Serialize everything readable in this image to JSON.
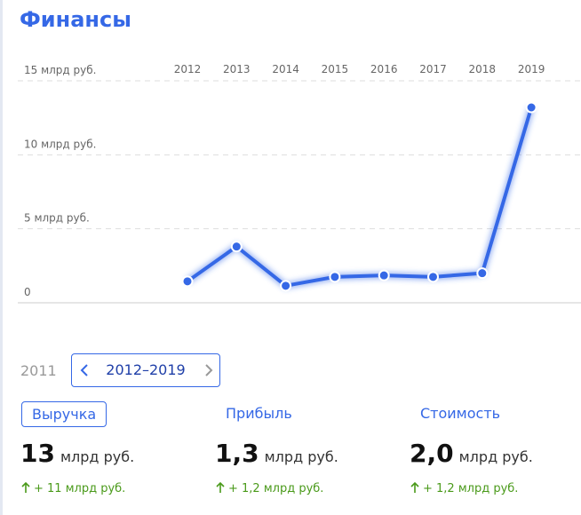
{
  "title": "Финансы",
  "chart_data": {
    "type": "line",
    "categories": [
      "2012",
      "2013",
      "2014",
      "2015",
      "2016",
      "2017",
      "2018",
      "2019"
    ],
    "values": [
      1.45,
      3.8,
      1.15,
      1.75,
      1.85,
      1.75,
      2.0,
      13.2
    ],
    "color": "#3568e6",
    "ylim": [
      0,
      15
    ],
    "yticks": [
      0,
      {
        "value": 5,
        "label": "5 млрд руб."
      },
      {
        "value": 10,
        "label": "10 млрд руб."
      },
      {
        "value": 15,
        "label": "15 млрд руб."
      }
    ],
    "grid": true
  },
  "period": {
    "previous": "2011",
    "range": "2012–2019"
  },
  "metrics": [
    {
      "label": "Выручка",
      "value": "13",
      "unit": "млрд руб.",
      "change": "+ 11 млрд руб."
    },
    {
      "label": "Прибыль",
      "value": "1,3",
      "unit": "млрд руб.",
      "change": "+ 1,2 млрд руб."
    },
    {
      "label": "Стоимость",
      "value": "2,0",
      "unit": "млрд руб.",
      "change": "+ 1,2 млрд руб."
    }
  ]
}
